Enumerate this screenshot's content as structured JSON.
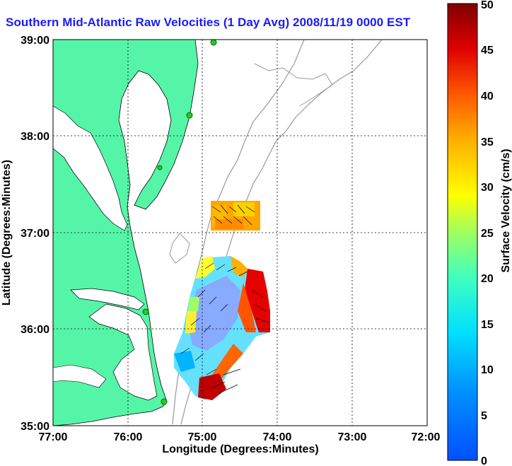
{
  "title": "Southern Mid-Atlantic Raw Velocities (1 Day Avg) 2008/11/19 0000 EST",
  "map": {
    "x_label": "Longitude (Degrees:Minutes)",
    "y_label": "Latitude (Degrees:Minutes)",
    "x_ticks": [
      "77:00",
      "76:00",
      "75:00",
      "74:00",
      "73:00",
      "72:00"
    ],
    "y_ticks": [
      "39:00",
      "38:00",
      "37:00",
      "36:00",
      "35:00"
    ],
    "lon_range": [
      -77,
      -72
    ],
    "lat_range": [
      35,
      39
    ],
    "grid": true,
    "land_color": "#55f5a8",
    "water_color": "#ffffff",
    "station_color": "#22cc22"
  },
  "colorbar": {
    "label": "Surface Velocity (cm/s)",
    "ticks": [
      "50",
      "45",
      "40",
      "35",
      "30",
      "25",
      "20",
      "15",
      "10",
      "5",
      "0"
    ],
    "range": [
      0,
      50
    ],
    "colormap": "jet"
  }
}
